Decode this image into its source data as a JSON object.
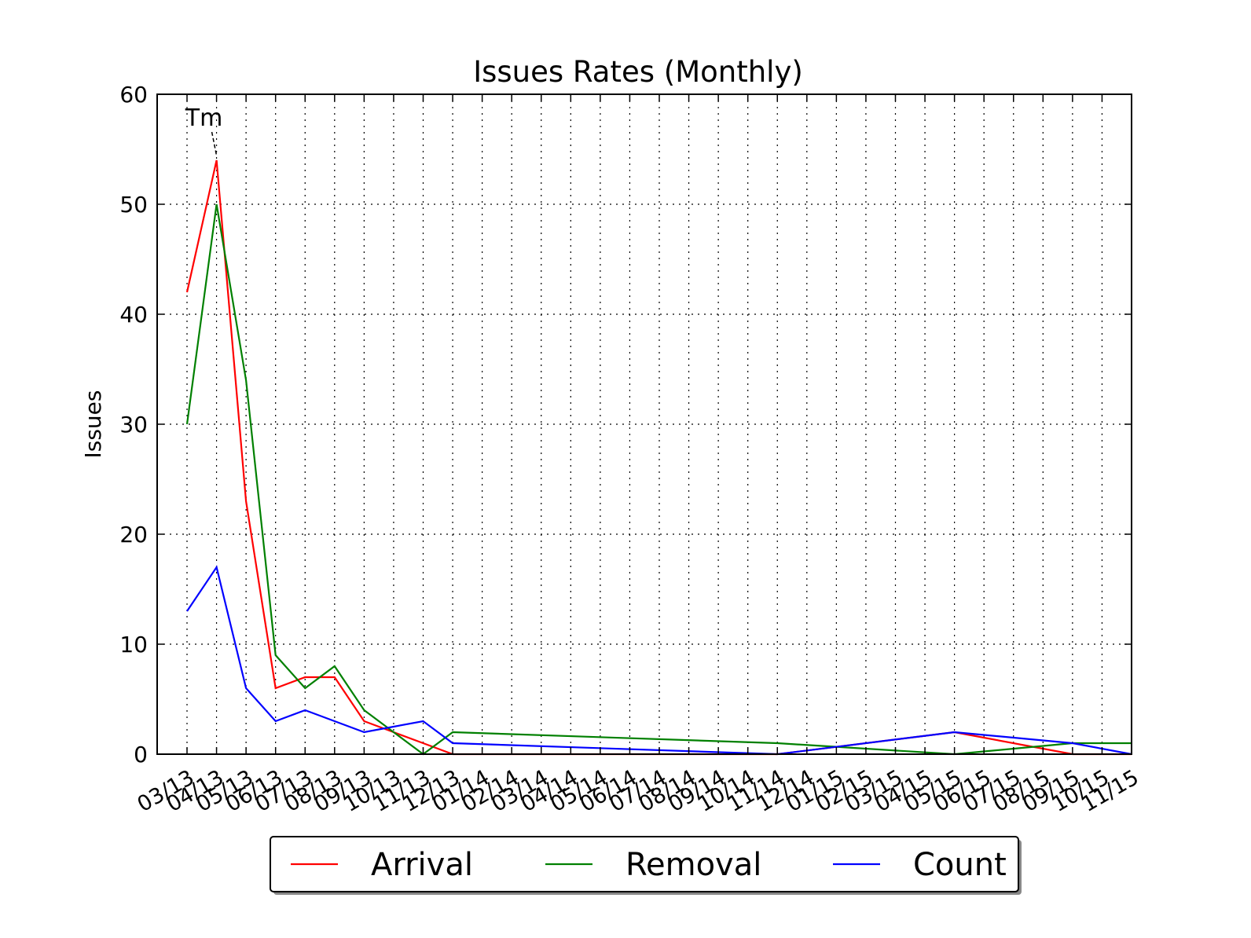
{
  "chart_data": {
    "type": "line",
    "title": "Issues Rates (Monthly)",
    "xlabel": "",
    "ylabel": "Issues",
    "ylim": [
      0,
      60
    ],
    "yticks": [
      0,
      10,
      20,
      30,
      40,
      50,
      60
    ],
    "grid": true,
    "legend_position": "bottom-center",
    "categories": [
      "03/13",
      "04/13",
      "05/13",
      "06/13",
      "07/13",
      "08/13",
      "09/13",
      "10/13",
      "11/13",
      "12/13",
      "01/14",
      "02/14",
      "03/14",
      "04/14",
      "05/14",
      "06/14",
      "07/14",
      "08/14",
      "09/14",
      "10/14",
      "11/14",
      "12/14",
      "01/15",
      "02/15",
      "03/15",
      "04/15",
      "05/15",
      "06/15",
      "07/15",
      "08/15",
      "09/15",
      "10/15",
      "11/15"
    ],
    "series": [
      {
        "name": "Arrival",
        "color": "#ff0000",
        "points": [
          [
            0,
            42
          ],
          [
            1,
            54
          ],
          [
            2,
            23
          ],
          [
            3,
            6
          ],
          [
            4,
            7
          ],
          [
            5,
            7
          ],
          [
            6,
            3
          ],
          [
            7,
            2
          ],
          [
            8,
            1
          ],
          [
            9,
            0
          ],
          [
            20,
            0
          ],
          [
            26,
            2
          ],
          [
            30,
            0
          ],
          [
            32,
            0
          ]
        ]
      },
      {
        "name": "Removal",
        "color": "#008000",
        "points": [
          [
            0,
            30
          ],
          [
            1,
            50
          ],
          [
            2,
            34
          ],
          [
            3,
            9
          ],
          [
            4,
            6
          ],
          [
            5,
            8
          ],
          [
            6,
            4
          ],
          [
            7,
            2
          ],
          [
            8,
            0
          ],
          [
            9,
            2
          ],
          [
            20,
            1
          ],
          [
            26,
            0
          ],
          [
            30,
            1
          ],
          [
            32,
            1
          ]
        ]
      },
      {
        "name": "Count",
        "color": "#0000ff",
        "points": [
          [
            0,
            13
          ],
          [
            1,
            17
          ],
          [
            2,
            6
          ],
          [
            3,
            3
          ],
          [
            4,
            4
          ],
          [
            5,
            3
          ],
          [
            6,
            2
          ],
          [
            7,
            2.5
          ],
          [
            8,
            3
          ],
          [
            9,
            1
          ],
          [
            20,
            0
          ],
          [
            26,
            2
          ],
          [
            30,
            1
          ],
          [
            32,
            0
          ]
        ]
      }
    ],
    "annotations": [
      {
        "text": "Tm",
        "x": 1,
        "y": 54
      }
    ]
  }
}
